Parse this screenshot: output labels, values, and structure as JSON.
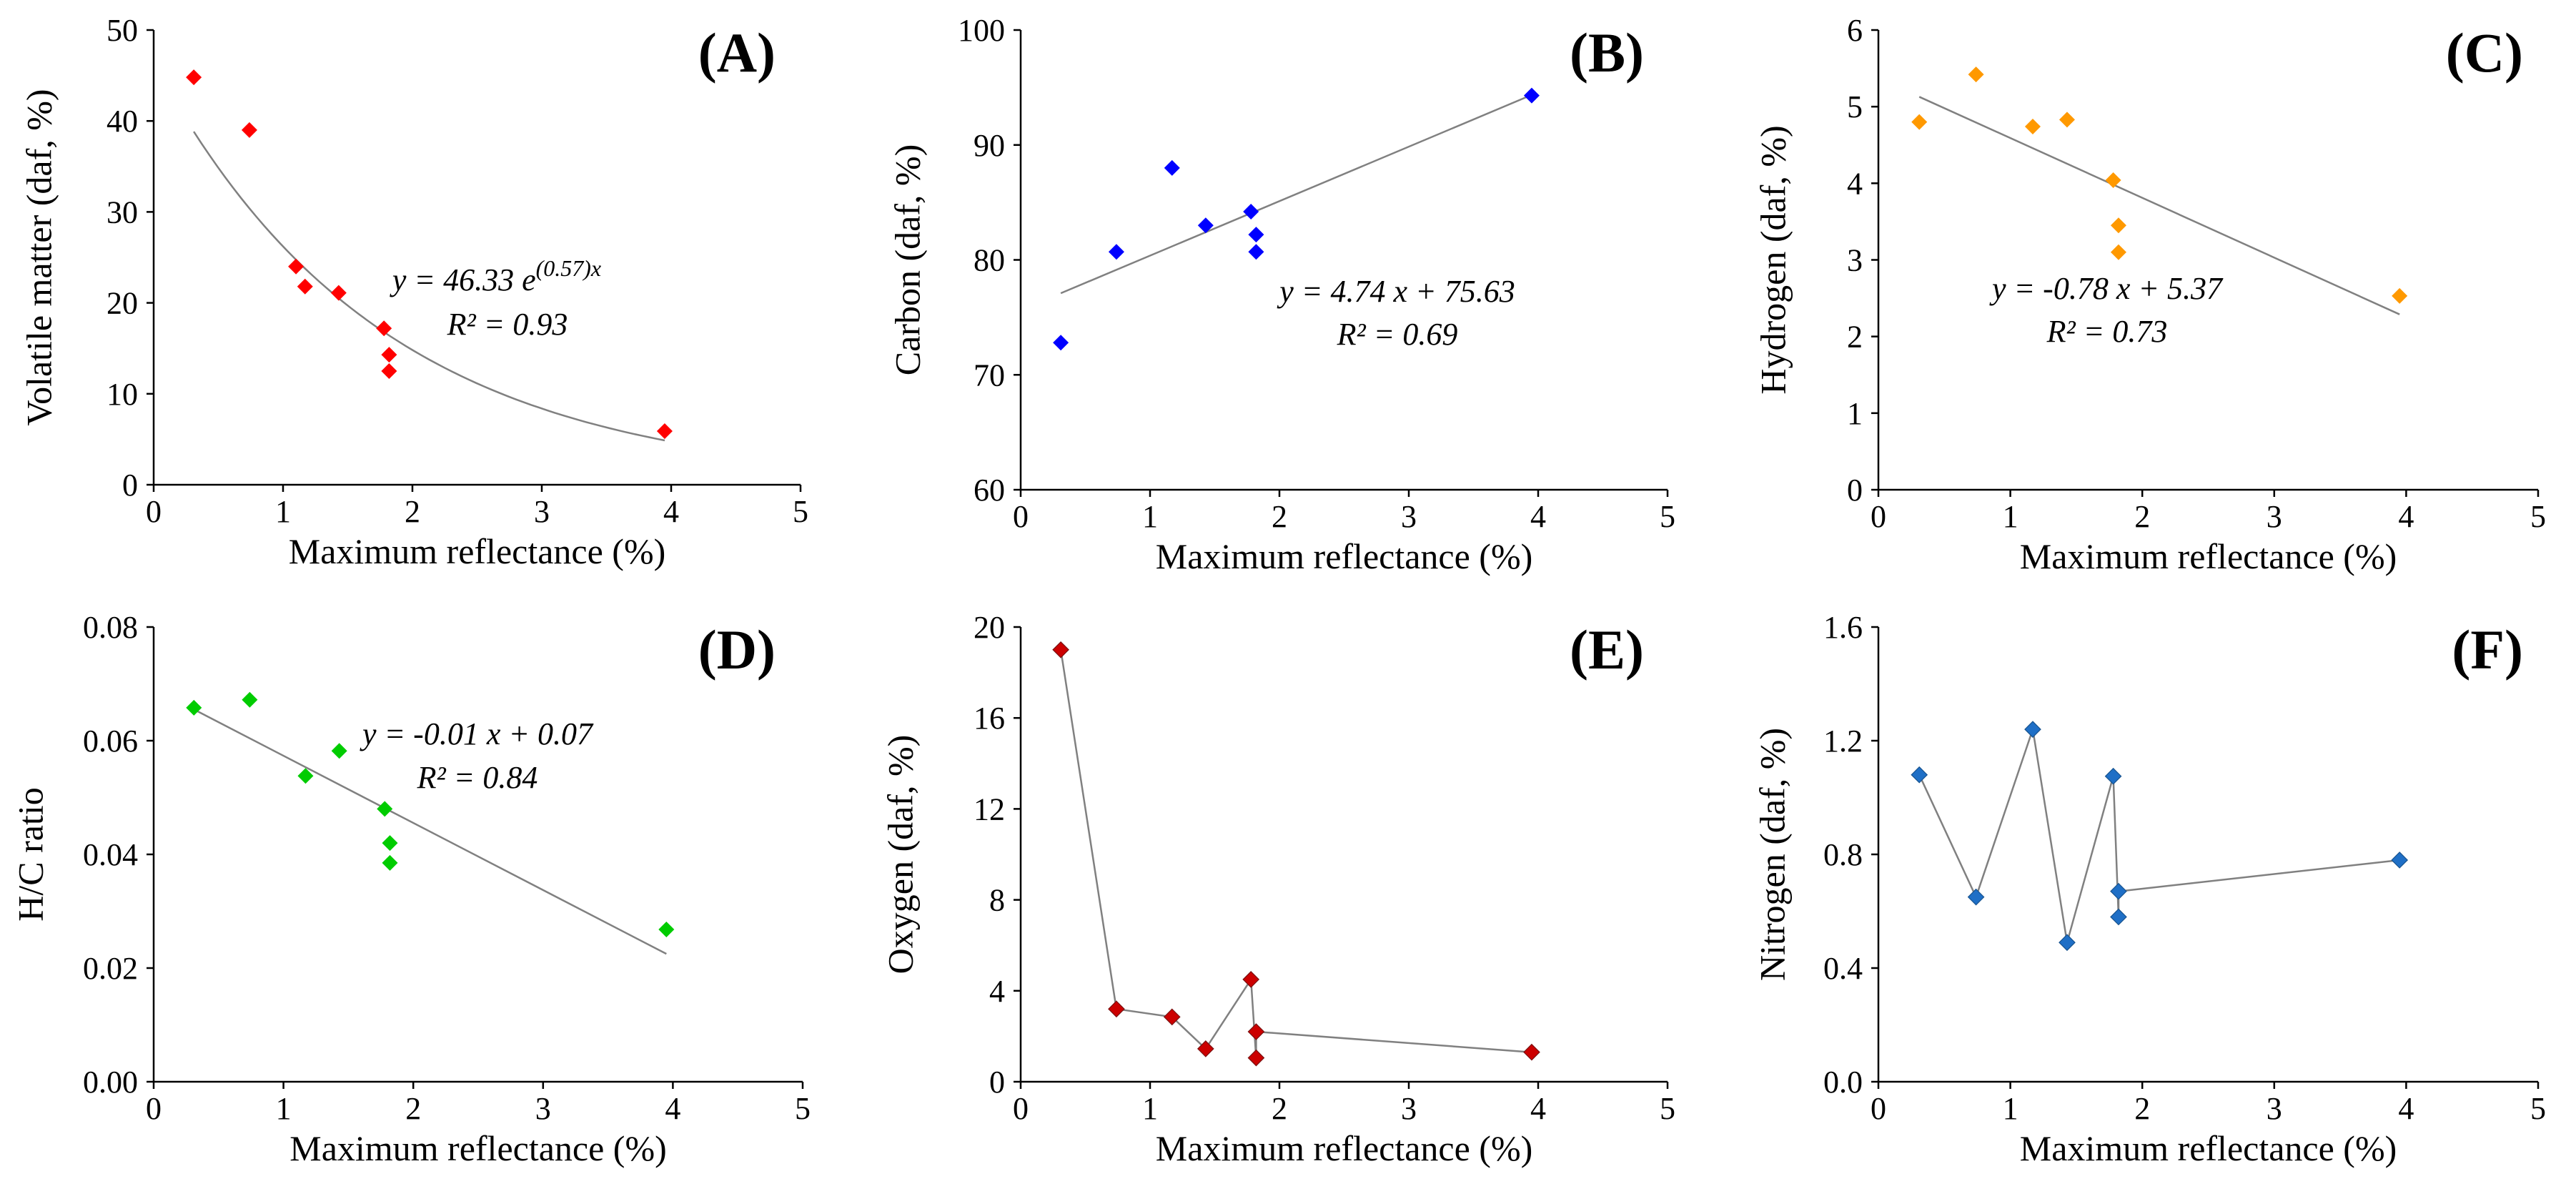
{
  "figure": {
    "background": "#ffffff",
    "axis_color": "#000000",
    "trend_color": "#808080"
  },
  "chart_data": [
    {
      "id": "A",
      "type": "scatter",
      "panel_label": "(A)",
      "xlabel": "Maximum reflectance (%)",
      "ylabel": "Volatile matter (daf, %)",
      "xlim": [
        0,
        5
      ],
      "ylim": [
        0,
        50
      ],
      "xticks": [
        0,
        1,
        2,
        3,
        4,
        5
      ],
      "yticks": [
        0,
        10,
        20,
        30,
        40,
        50
      ],
      "ytick_labels": [
        "0",
        "10",
        "20",
        "30",
        "40",
        "50"
      ],
      "marker_color": "#ff0000",
      "points": [
        [
          0.31,
          44.8
        ],
        [
          0.74,
          39.0
        ],
        [
          1.1,
          24.0
        ],
        [
          1.17,
          21.8
        ],
        [
          1.43,
          21.1
        ],
        [
          1.78,
          17.2
        ],
        [
          1.82,
          14.3
        ],
        [
          1.82,
          12.5
        ],
        [
          3.95,
          5.9
        ]
      ],
      "trend": {
        "kind": "exp",
        "a": 46.33,
        "b": -0.57,
        "x_range": [
          0.31,
          3.95
        ]
      },
      "equation": {
        "prefix": "y = 46.33 e",
        "exponent": "(0.57)x"
      },
      "r2": "R² = 0.93"
    },
    {
      "id": "B",
      "type": "scatter",
      "panel_label": "(B)",
      "xlabel": "Maximum reflectance (%)",
      "ylabel": "Carbon (daf, %)",
      "xlim": [
        0,
        5
      ],
      "ylim": [
        60,
        100
      ],
      "xticks": [
        0,
        1,
        2,
        3,
        4,
        5
      ],
      "yticks": [
        60,
        70,
        80,
        90,
        100
      ],
      "ytick_labels": [
        "60",
        "70",
        "80",
        "90",
        "100"
      ],
      "marker_color": "#0000ff",
      "points": [
        [
          0.31,
          72.8
        ],
        [
          0.74,
          80.7
        ],
        [
          1.17,
          88.0
        ],
        [
          1.43,
          83.0
        ],
        [
          1.78,
          84.2
        ],
        [
          1.82,
          82.2
        ],
        [
          1.82,
          80.7
        ],
        [
          3.95,
          94.3
        ]
      ],
      "trend": {
        "kind": "linear",
        "m": 4.74,
        "c": 75.63,
        "x_range": [
          0.31,
          3.95
        ]
      },
      "equation": {
        "text": "y = 4.74 x + 75.63"
      },
      "r2": "R² = 0.69"
    },
    {
      "id": "C",
      "type": "scatter",
      "panel_label": "(C)",
      "xlabel": "Maximum reflectance (%)",
      "ylabel": "Hydrogen (daf, %)",
      "xlim": [
        0,
        5
      ],
      "ylim": [
        0,
        6
      ],
      "xticks": [
        0,
        1,
        2,
        3,
        4,
        5
      ],
      "yticks": [
        0,
        1,
        2,
        3,
        4,
        5,
        6
      ],
      "ytick_labels": [
        "0",
        "1",
        "2",
        "3",
        "4",
        "5",
        "6"
      ],
      "marker_color": "#ff9900",
      "points": [
        [
          0.31,
          4.8
        ],
        [
          0.74,
          5.42
        ],
        [
          1.17,
          4.74
        ],
        [
          1.43,
          4.83
        ],
        [
          1.78,
          4.04
        ],
        [
          1.82,
          3.45
        ],
        [
          1.82,
          3.1
        ],
        [
          3.95,
          2.53
        ]
      ],
      "trend": {
        "kind": "linear",
        "m": -0.78,
        "c": 5.37,
        "x_range": [
          0.31,
          3.95
        ]
      },
      "equation": {
        "text": "y = -0.78 x + 5.37"
      },
      "r2": "R² = 0.73"
    },
    {
      "id": "D",
      "type": "scatter",
      "panel_label": "(D)",
      "xlabel": "Maximum reflectance (%)",
      "ylabel": "H/C ratio",
      "xlim": [
        0,
        5
      ],
      "ylim": [
        0,
        0.08
      ],
      "xticks": [
        0,
        1,
        2,
        3,
        4,
        5
      ],
      "yticks": [
        0,
        0.02,
        0.04,
        0.06,
        0.08
      ],
      "ytick_labels": [
        "0.00",
        "0.02",
        "0.04",
        "0.06",
        "0.08"
      ],
      "marker_color": "#00cc00",
      "points": [
        [
          0.31,
          0.0658
        ],
        [
          0.74,
          0.0672
        ],
        [
          1.17,
          0.0538
        ],
        [
          1.43,
          0.0582
        ],
        [
          1.78,
          0.048
        ],
        [
          1.82,
          0.042
        ],
        [
          1.82,
          0.0385
        ],
        [
          3.95,
          0.0268
        ]
      ],
      "trend": {
        "kind": "linear_pts",
        "x_range": [
          0.31,
          3.95
        ],
        "y_range": [
          0.0655,
          0.0225
        ]
      },
      "equation": {
        "text": "y = -0.01 x + 0.07"
      },
      "r2": "R² = 0.84"
    },
    {
      "id": "E",
      "type": "line",
      "panel_label": "(E)",
      "xlabel": "Maximum reflectance (%)",
      "ylabel": "Oxygen (daf, %)",
      "xlim": [
        0,
        5
      ],
      "ylim": [
        0,
        20
      ],
      "xticks": [
        0,
        1,
        2,
        3,
        4,
        5
      ],
      "yticks": [
        0,
        4,
        8,
        12,
        16,
        20
      ],
      "ytick_labels": [
        "0",
        "4",
        "8",
        "12",
        "16",
        "20"
      ],
      "marker_color": "#cc0000",
      "points": [
        [
          0.31,
          19.0
        ],
        [
          0.74,
          3.2
        ],
        [
          1.17,
          2.85
        ],
        [
          1.43,
          1.45
        ],
        [
          1.78,
          4.5
        ],
        [
          1.82,
          1.05
        ],
        [
          1.82,
          2.2
        ],
        [
          3.95,
          1.3
        ]
      ]
    },
    {
      "id": "F",
      "type": "line",
      "panel_label": "(F)",
      "xlabel": "Maximum reflectance (%)",
      "ylabel": "Nitrogen (daf, %)",
      "xlim": [
        0,
        5
      ],
      "ylim": [
        0,
        1.6
      ],
      "xticks": [
        0,
        1,
        2,
        3,
        4,
        5
      ],
      "yticks": [
        0,
        0.4,
        0.8,
        1.2,
        1.6
      ],
      "ytick_labels": [
        "0.0",
        "0.4",
        "0.8",
        "1.2",
        "1.6"
      ],
      "marker_color": "#1f6fc6",
      "points": [
        [
          0.31,
          1.08
        ],
        [
          0.74,
          0.65
        ],
        [
          1.17,
          1.24
        ],
        [
          1.43,
          0.49
        ],
        [
          1.78,
          1.075
        ],
        [
          1.82,
          0.58
        ],
        [
          1.82,
          0.67
        ],
        [
          3.95,
          0.78
        ]
      ]
    }
  ]
}
